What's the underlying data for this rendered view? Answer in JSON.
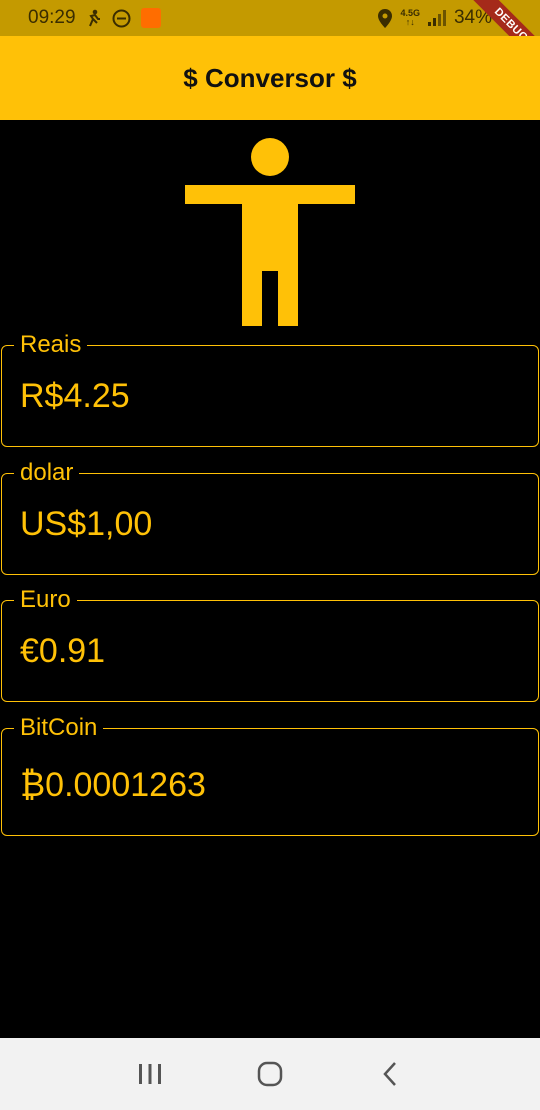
{
  "status_bar": {
    "time": "09:29",
    "network_top": "4.5G",
    "network_bottom": "↑↓",
    "battery": "34%"
  },
  "debug_banner": "DEBUG",
  "app_bar": {
    "title": "$ Conversor $"
  },
  "hero": {
    "icon": "accessibility-icon"
  },
  "fields": [
    {
      "label": "Reais",
      "value": "R$4.25"
    },
    {
      "label": "dolar",
      "value": "US$1,00"
    },
    {
      "label": "Euro",
      "value": "€0.91"
    },
    {
      "label": "BitCoin",
      "value": "₿0.0001263"
    }
  ],
  "colors": {
    "accent": "#FFC107",
    "status_bar": "#C49A00",
    "background": "#000000",
    "nav_bar": "#F2F2F2",
    "debug": "#A52A1A"
  },
  "nav_bar": {
    "recents": "recents-icon",
    "home": "home-icon",
    "back": "back-icon"
  }
}
